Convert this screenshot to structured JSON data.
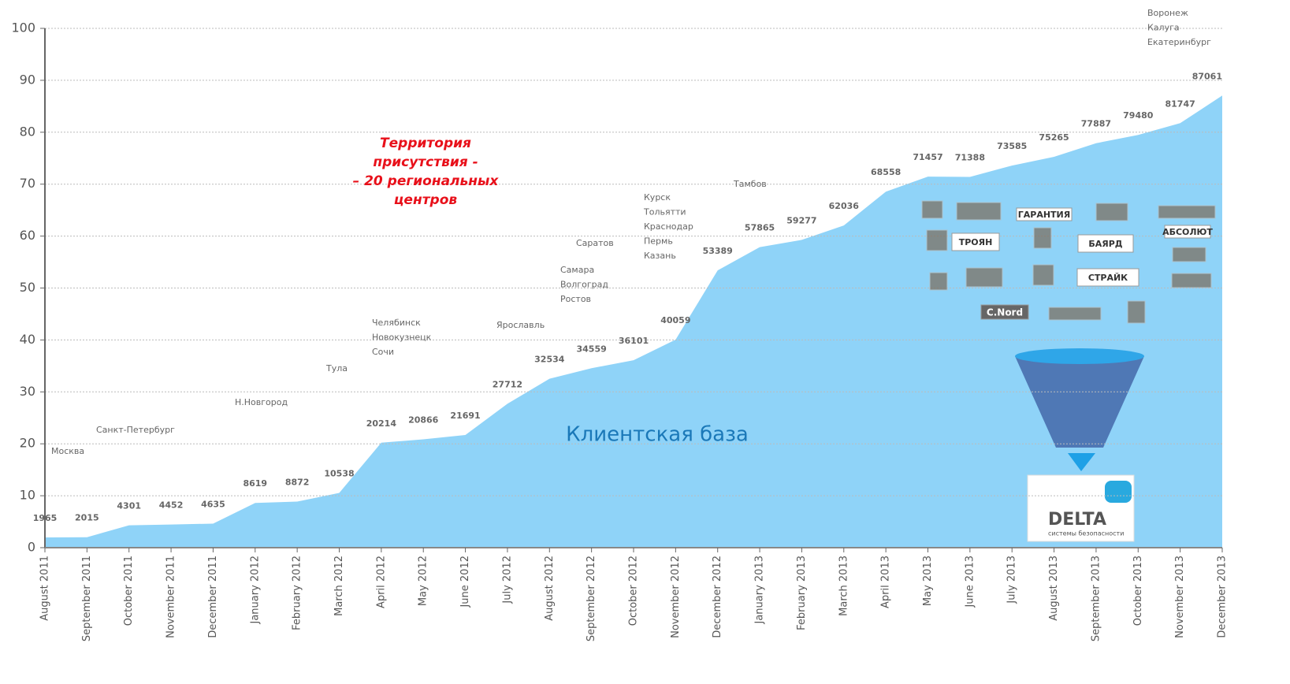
{
  "chart_data": {
    "type": "area",
    "categories": [
      "August 2011",
      "September 2011",
      "October 2011",
      "November 2011",
      "December 2011",
      "January 2012",
      "February 2012",
      "March 2012",
      "April 2012",
      "May 2012",
      "June 2012",
      "July 2012",
      "August 2012",
      "September 2012",
      "October 2012",
      "November 2012",
      "December 2012",
      "January 2013",
      "February 2013",
      "March 2013",
      "April 2013",
      "May 2013",
      "June 2013",
      "July 2013",
      "August 2013",
      "September 2013",
      "October 2013",
      "November 2013",
      "December 2013"
    ],
    "values": [
      1.965,
      2.015,
      4.301,
      4.452,
      4.635,
      8.619,
      8.872,
      10.538,
      20.214,
      20.866,
      21.691,
      27.712,
      32.534,
      34.559,
      36.101,
      40.059,
      53.389,
      57.865,
      59.277,
      62.036,
      68.558,
      71.457,
      71.388,
      73.585,
      75.265,
      77.887,
      79.48,
      81.747,
      87.061
    ],
    "value_labels": [
      "1965",
      "2015",
      "4301",
      "4452",
      "4635",
      "8619",
      "8872",
      "10538",
      "20214",
      "20866",
      "21691",
      "27712",
      "32534",
      "34559",
      "36101",
      "40059",
      "53389",
      "57865",
      "59277",
      "62036",
      "68558",
      "71457",
      "71388",
      "73585",
      "75265",
      "77887",
      "79480",
      "81747",
      "87061"
    ],
    "color": "#8fd3f8",
    "ylim": [
      0,
      100
    ],
    "yticks": [
      0,
      10,
      20,
      30,
      40,
      50,
      60,
      70,
      80,
      90,
      100
    ],
    "grid": true,
    "annotations": [
      [
        "Москва"
      ],
      [
        "Санкт-Петербург"
      ],
      [
        "Н.Новгород"
      ],
      [
        "Тула"
      ],
      [
        "Челябинск",
        "Новокузнецк",
        "Сочи"
      ],
      [
        "Ярославль"
      ],
      [
        "Самара",
        "Волгоград",
        "Ростов"
      ],
      [
        "Саратов"
      ],
      [
        "Курск",
        "Тольятти",
        "Краснодар",
        "Пермь",
        "Казань"
      ],
      [
        "Тамбов"
      ],
      [
        "Воронеж",
        "Калуга",
        "Екатеринбург"
      ]
    ],
    "highlight": [
      "Территория",
      "присутствия -",
      "– 20 региональных",
      "центров"
    ],
    "area_label": "Клиентская база",
    "logos": [
      "ГАРАНТИЯ",
      "ТРОЯН",
      "БАЯРД",
      "СТРАЙК",
      "C.Nord",
      "АБСОЛЮТ"
    ],
    "brand": {
      "name": "DELTA",
      "tagline": "системы безопасности"
    }
  }
}
